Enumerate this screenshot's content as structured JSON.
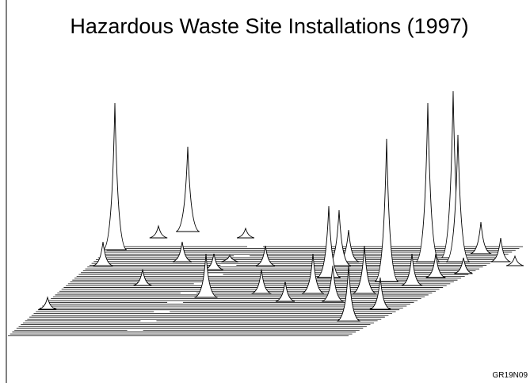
{
  "chart_data": {
    "type": "surface",
    "title": "Hazardous Waste Site Installations (1997)",
    "footnote": "GR19N09"
  }
}
